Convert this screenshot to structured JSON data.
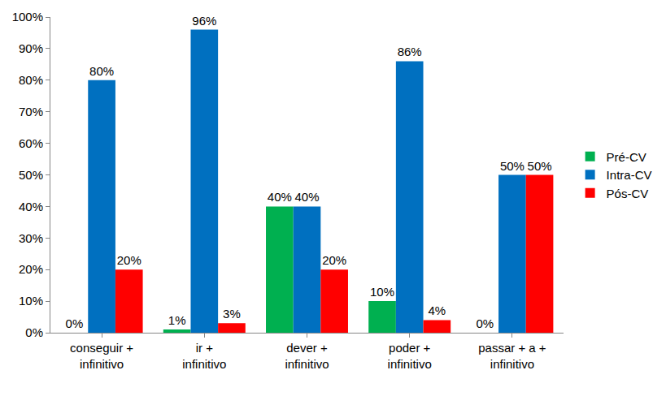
{
  "chart_data": {
    "type": "bar",
    "categories": [
      "conseguir + infinitivo",
      "ir + infinitivo",
      "dever + infinitivo",
      "poder + infinitivo",
      "passar + a + infinitivo"
    ],
    "series": [
      {
        "name": "Pré-CV",
        "color": "#00b050",
        "values": [
          0,
          1,
          40,
          10,
          0
        ],
        "value_labels": [
          "0%",
          "1%",
          "40%",
          "10%",
          "0%"
        ]
      },
      {
        "name": "Intra-CV",
        "color": "#0070c0",
        "values": [
          80,
          96,
          40,
          86,
          50
        ],
        "value_labels": [
          "80%",
          "96%",
          "40%",
          "86%",
          "50%"
        ]
      },
      {
        "name": "Pós-CV",
        "color": "#ff0000",
        "values": [
          20,
          3,
          20,
          4,
          50
        ],
        "value_labels": [
          "20%",
          "3%",
          "20%",
          "4%",
          "50%"
        ]
      }
    ],
    "ylim": [
      0,
      100
    ],
    "yticks": [
      {
        "value": 0,
        "label": "0%"
      },
      {
        "value": 10,
        "label": "10%"
      },
      {
        "value": 20,
        "label": "20%"
      },
      {
        "value": 30,
        "label": "30%"
      },
      {
        "value": 40,
        "label": "40%"
      },
      {
        "value": 50,
        "label": "50%"
      },
      {
        "value": 60,
        "label": "60%"
      },
      {
        "value": 70,
        "label": "70%"
      },
      {
        "value": 80,
        "label": "80%"
      },
      {
        "value": 90,
        "label": "90%"
      },
      {
        "value": 100,
        "label": "100%"
      }
    ],
    "grid": false,
    "legend": "right",
    "data_labels": true
  }
}
